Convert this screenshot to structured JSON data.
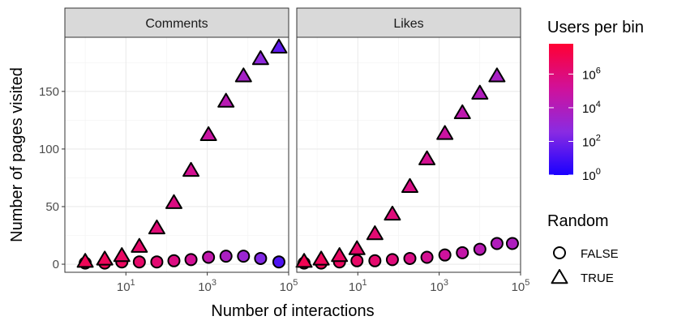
{
  "chart_data": {
    "type": "scatter",
    "xlabel": "Number of interactions",
    "ylabel": "Number of pages visited",
    "x_scale": "log10",
    "xlim_log10": [
      -0.5,
      5.0
    ],
    "ylim": [
      -7,
      197
    ],
    "x_ticks": [
      {
        "base": "10",
        "exp": "1",
        "log10": 1
      },
      {
        "base": "10",
        "exp": "3",
        "log10": 3
      },
      {
        "base": "10",
        "exp": "5",
        "log10": 5
      }
    ],
    "y_ticks": [
      {
        "label": "0",
        "value": 0
      },
      {
        "label": "50",
        "value": 50
      },
      {
        "label": "100",
        "value": 100
      },
      {
        "label": "150",
        "value": 150
      }
    ],
    "facets": [
      {
        "label": "Comments",
        "series": [
          {
            "name": "FALSE",
            "shape": "circle",
            "points": [
              {
                "x_log10": 0.0,
                "y": 1,
                "users_log10": 7.0
              },
              {
                "x_log10": 0.48,
                "y": 1,
                "users_log10": 6.9
              },
              {
                "x_log10": 0.9,
                "y": 2,
                "users_log10": 6.7
              },
              {
                "x_log10": 1.33,
                "y": 2,
                "users_log10": 6.4
              },
              {
                "x_log10": 1.76,
                "y": 2,
                "users_log10": 6.2
              },
              {
                "x_log10": 2.18,
                "y": 3,
                "users_log10": 5.8
              },
              {
                "x_log10": 2.6,
                "y": 4,
                "users_log10": 5.3
              },
              {
                "x_log10": 3.03,
                "y": 6,
                "users_log10": 4.6
              },
              {
                "x_log10": 3.46,
                "y": 7,
                "users_log10": 3.8
              },
              {
                "x_log10": 3.89,
                "y": 7,
                "users_log10": 3.2
              },
              {
                "x_log10": 4.31,
                "y": 5,
                "users_log10": 2.4
              },
              {
                "x_log10": 4.76,
                "y": 2,
                "users_log10": 1.2
              }
            ]
          },
          {
            "name": "TRUE",
            "shape": "triangle",
            "points": [
              {
                "x_log10": 0.0,
                "y": 2,
                "users_log10": 6.9
              },
              {
                "x_log10": 0.48,
                "y": 4,
                "users_log10": 6.8
              },
              {
                "x_log10": 0.9,
                "y": 7,
                "users_log10": 6.6
              },
              {
                "x_log10": 1.33,
                "y": 15,
                "users_log10": 6.4
              },
              {
                "x_log10": 1.76,
                "y": 31,
                "users_log10": 6.1
              },
              {
                "x_log10": 2.18,
                "y": 53,
                "users_log10": 5.8
              },
              {
                "x_log10": 2.6,
                "y": 81,
                "users_log10": 5.4
              },
              {
                "x_log10": 3.03,
                "y": 112,
                "users_log10": 4.9
              },
              {
                "x_log10": 3.46,
                "y": 141,
                "users_log10": 4.3
              },
              {
                "x_log10": 3.89,
                "y": 163,
                "users_log10": 3.6
              },
              {
                "x_log10": 4.31,
                "y": 178,
                "users_log10": 2.8
              },
              {
                "x_log10": 4.76,
                "y": 188,
                "users_log10": 1.6
              }
            ]
          }
        ]
      },
      {
        "label": "Likes",
        "series": [
          {
            "name": "FALSE",
            "shape": "circle",
            "points": [
              {
                "x_log10": -0.32,
                "y": 1,
                "users_log10": 7.0
              },
              {
                "x_log10": 0.1,
                "y": 1,
                "users_log10": 6.9
              },
              {
                "x_log10": 0.55,
                "y": 2,
                "users_log10": 6.7
              },
              {
                "x_log10": 0.98,
                "y": 3,
                "users_log10": 6.5
              },
              {
                "x_log10": 1.42,
                "y": 3,
                "users_log10": 6.3
              },
              {
                "x_log10": 1.85,
                "y": 4,
                "users_log10": 6.0
              },
              {
                "x_log10": 2.28,
                "y": 5,
                "users_log10": 5.7
              },
              {
                "x_log10": 2.7,
                "y": 6,
                "users_log10": 5.4
              },
              {
                "x_log10": 3.14,
                "y": 8,
                "users_log10": 5.1
              },
              {
                "x_log10": 3.57,
                "y": 10,
                "users_log10": 4.7
              },
              {
                "x_log10": 4.0,
                "y": 13,
                "users_log10": 4.3
              },
              {
                "x_log10": 4.42,
                "y": 18,
                "users_log10": 4.0
              },
              {
                "x_log10": 4.8,
                "y": 18,
                "users_log10": 3.9
              }
            ]
          },
          {
            "name": "TRUE",
            "shape": "triangle",
            "points": [
              {
                "x_log10": -0.32,
                "y": 2,
                "users_log10": 7.0
              },
              {
                "x_log10": 0.1,
                "y": 4,
                "users_log10": 6.8
              },
              {
                "x_log10": 0.55,
                "y": 7,
                "users_log10": 6.6
              },
              {
                "x_log10": 0.98,
                "y": 13,
                "users_log10": 6.4
              },
              {
                "x_log10": 1.42,
                "y": 26,
                "users_log10": 6.2
              },
              {
                "x_log10": 1.85,
                "y": 43,
                "users_log10": 6.0
              },
              {
                "x_log10": 2.28,
                "y": 67,
                "users_log10": 5.7
              },
              {
                "x_log10": 2.7,
                "y": 91,
                "users_log10": 5.4
              },
              {
                "x_log10": 3.14,
                "y": 113,
                "users_log10": 5.0
              },
              {
                "x_log10": 3.57,
                "y": 131,
                "users_log10": 4.5
              },
              {
                "x_log10": 4.0,
                "y": 148,
                "users_log10": 4.0
              },
              {
                "x_log10": 4.42,
                "y": 163,
                "users_log10": 3.7
              }
            ]
          }
        ]
      }
    ],
    "legend": {
      "color": {
        "title": "Users per bin",
        "range_log10": [
          0,
          7.8
        ],
        "colors": [
          "#1a00ff",
          "#8a2be2",
          "#d0119a",
          "#ff0033"
        ],
        "ticks": [
          {
            "base": "10",
            "exp": "0",
            "log10": 0
          },
          {
            "base": "10",
            "exp": "2",
            "log10": 2
          },
          {
            "base": "10",
            "exp": "4",
            "log10": 4
          },
          {
            "base": "10",
            "exp": "6",
            "log10": 6
          }
        ]
      },
      "shape": {
        "title": "Random",
        "items": [
          {
            "label": "FALSE",
            "shape": "circle"
          },
          {
            "label": "TRUE",
            "shape": "triangle"
          }
        ]
      }
    }
  }
}
